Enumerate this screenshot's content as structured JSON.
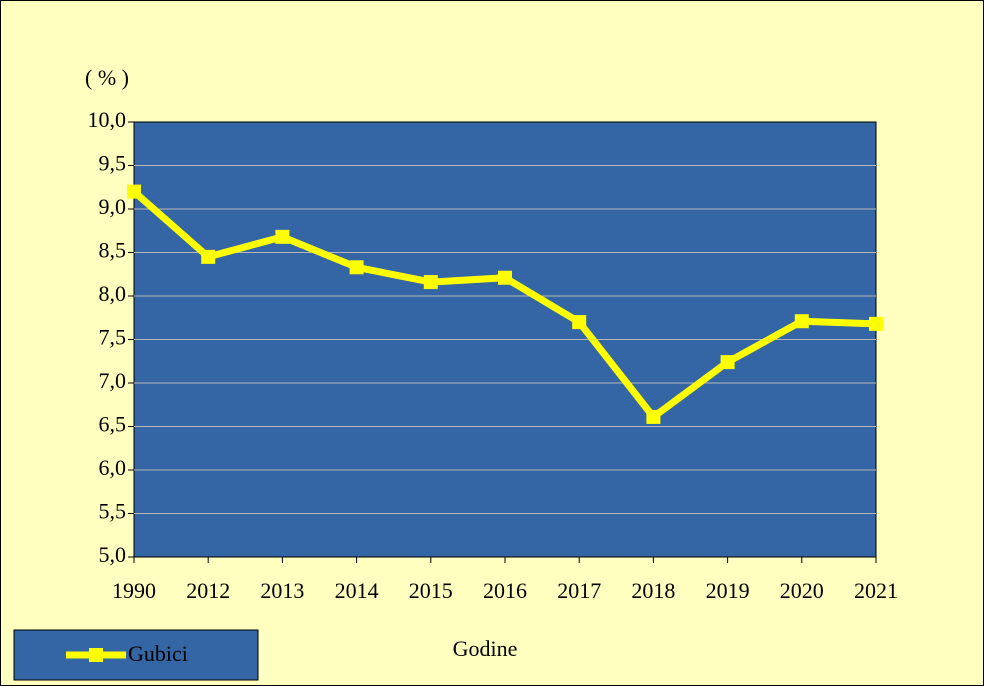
{
  "chart_data": {
    "type": "line",
    "y_label": "( % )",
    "x_label": "Godine",
    "categories": [
      "1990",
      "2012",
      "2013",
      "2014",
      "2015",
      "2016",
      "2017",
      "2018",
      "2019",
      "2020",
      "2021"
    ],
    "series": [
      {
        "name": "Gubici",
        "color": "#ffff00",
        "values": [
          9.2,
          8.45,
          8.68,
          8.33,
          8.16,
          8.21,
          7.7,
          6.61,
          7.24,
          7.71,
          7.68
        ]
      }
    ],
    "ylim": [
      5,
      10
    ],
    "yticks": [
      {
        "value": 5,
        "label": "5,0"
      },
      {
        "value": 5.5,
        "label": "5,5"
      },
      {
        "value": 6,
        "label": "6,0"
      },
      {
        "value": 6.5,
        "label": "6,5"
      },
      {
        "value": 7,
        "label": "7,0"
      },
      {
        "value": 7.5,
        "label": "7,5"
      },
      {
        "value": 8,
        "label": "8,0"
      },
      {
        "value": 8.5,
        "label": "8,5"
      },
      {
        "value": 9,
        "label": "9,0"
      },
      {
        "value": 9.5,
        "label": "9,5"
      },
      {
        "value": 10,
        "label": "10,0"
      }
    ],
    "grid": true,
    "legend": "bottom-left"
  }
}
